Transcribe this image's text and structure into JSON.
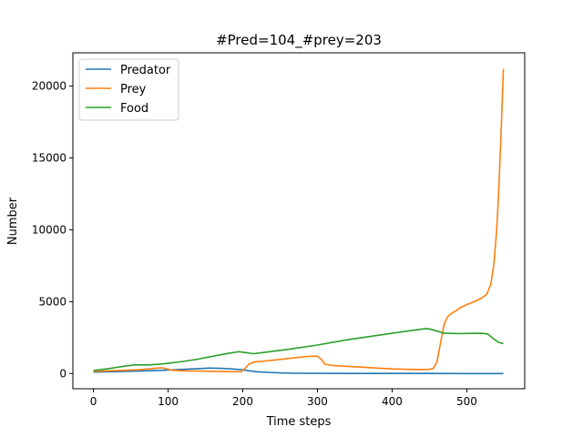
{
  "chart_data": {
    "type": "line",
    "title": "#Pred=104_#prey=203",
    "xlabel": "Time steps",
    "ylabel": "Number",
    "xlim": [
      -27.5,
      577.5
    ],
    "ylim": [
      -1060,
      22320
    ],
    "xticks": [
      0,
      100,
      200,
      300,
      400,
      500
    ],
    "yticks": [
      0,
      5000,
      10000,
      15000,
      20000
    ],
    "grid": false,
    "legend_position": "top-left",
    "series": [
      {
        "name": "Predator",
        "color": "#1f77b4",
        "points": [
          [
            0,
            100
          ],
          [
            30,
            130
          ],
          [
            60,
            170
          ],
          [
            90,
            220
          ],
          [
            120,
            290
          ],
          [
            140,
            340
          ],
          [
            155,
            380
          ],
          [
            170,
            360
          ],
          [
            185,
            320
          ],
          [
            200,
            260
          ],
          [
            210,
            180
          ],
          [
            220,
            120
          ],
          [
            235,
            80
          ],
          [
            250,
            40
          ],
          [
            270,
            20
          ],
          [
            300,
            10
          ],
          [
            350,
            5
          ],
          [
            400,
            3
          ],
          [
            450,
            2
          ],
          [
            500,
            1
          ],
          [
            549,
            1
          ]
        ]
      },
      {
        "name": "Prey",
        "color": "#ff7f0e",
        "points": [
          [
            0,
            150
          ],
          [
            30,
            200
          ],
          [
            60,
            260
          ],
          [
            75,
            330
          ],
          [
            85,
            380
          ],
          [
            93,
            400
          ],
          [
            98,
            330
          ],
          [
            105,
            230
          ],
          [
            120,
            190
          ],
          [
            150,
            160
          ],
          [
            180,
            130
          ],
          [
            198,
            120
          ],
          [
            203,
            350
          ],
          [
            208,
            650
          ],
          [
            215,
            800
          ],
          [
            230,
            870
          ],
          [
            250,
            980
          ],
          [
            270,
            1100
          ],
          [
            290,
            1200
          ],
          [
            300,
            1210
          ],
          [
            305,
            1000
          ],
          [
            310,
            650
          ],
          [
            320,
            560
          ],
          [
            340,
            500
          ],
          [
            360,
            440
          ],
          [
            380,
            380
          ],
          [
            400,
            320
          ],
          [
            420,
            290
          ],
          [
            440,
            280
          ],
          [
            450,
            290
          ],
          [
            455,
            350
          ],
          [
            460,
            800
          ],
          [
            465,
            2200
          ],
          [
            470,
            3500
          ],
          [
            475,
            4000
          ],
          [
            480,
            4200
          ],
          [
            485,
            4350
          ],
          [
            490,
            4550
          ],
          [
            500,
            4800
          ],
          [
            510,
            5000
          ],
          [
            520,
            5250
          ],
          [
            527,
            5550
          ],
          [
            532,
            6200
          ],
          [
            536,
            7500
          ],
          [
            540,
            10000
          ],
          [
            543,
            13000
          ],
          [
            546,
            17000
          ],
          [
            549,
            21200
          ]
        ]
      },
      {
        "name": "Food",
        "color": "#2ca02c",
        "points": [
          [
            0,
            200
          ],
          [
            20,
            340
          ],
          [
            40,
            500
          ],
          [
            55,
            600
          ],
          [
            75,
            600
          ],
          [
            90,
            660
          ],
          [
            105,
            740
          ],
          [
            120,
            840
          ],
          [
            140,
            1000
          ],
          [
            160,
            1200
          ],
          [
            180,
            1400
          ],
          [
            195,
            1520
          ],
          [
            205,
            1450
          ],
          [
            215,
            1380
          ],
          [
            230,
            1480
          ],
          [
            260,
            1680
          ],
          [
            300,
            1980
          ],
          [
            340,
            2350
          ],
          [
            380,
            2650
          ],
          [
            420,
            2950
          ],
          [
            445,
            3130
          ],
          [
            450,
            3100
          ],
          [
            460,
            2950
          ],
          [
            470,
            2800
          ],
          [
            490,
            2780
          ],
          [
            520,
            2800
          ],
          [
            528,
            2750
          ],
          [
            535,
            2450
          ],
          [
            542,
            2180
          ],
          [
            549,
            2080
          ]
        ]
      }
    ]
  }
}
